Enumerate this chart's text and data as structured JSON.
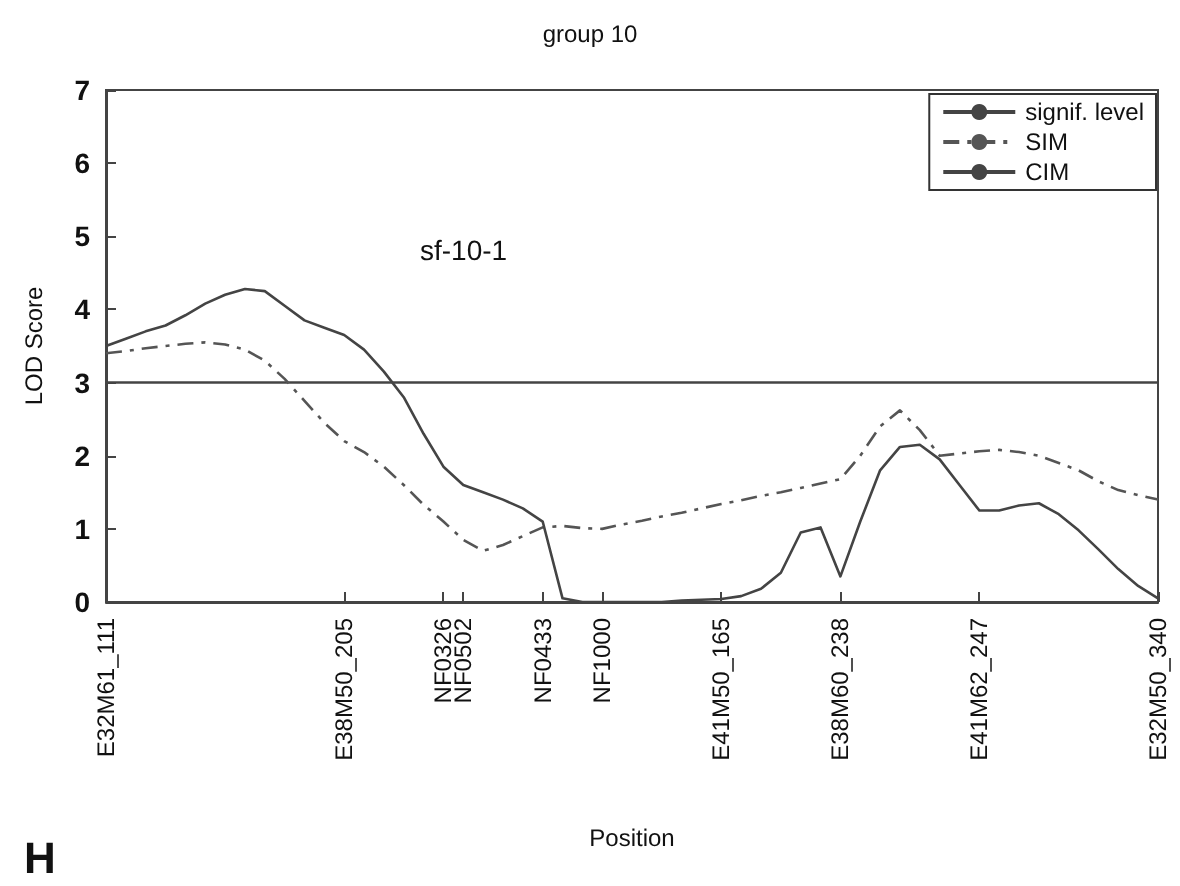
{
  "chart_data": {
    "type": "line",
    "title": "group 10",
    "xlabel": "Position",
    "ylabel": "LOD Score",
    "annotations": [
      "sf-10-1",
      "H"
    ],
    "categories": [
      "E32M61_111",
      null,
      null,
      null,
      null,
      null,
      null,
      null,
      null,
      null,
      null,
      null,
      "E38M50_205",
      null,
      null,
      null,
      null,
      "NF0326",
      "NF0502",
      null,
      null,
      null,
      "NF0433",
      null,
      null,
      "NF1000",
      null,
      null,
      null,
      null,
      null,
      "E41M50_165",
      null,
      null,
      null,
      null,
      null,
      "E38M60_238",
      null,
      null,
      null,
      null,
      null,
      null,
      "E41M62_247",
      null,
      null,
      null,
      null,
      null,
      null,
      null,
      null,
      "E32M50_340"
    ],
    "ylim": [
      0,
      7
    ],
    "yticks": [
      0,
      1,
      2,
      3,
      4,
      5,
      6,
      7
    ],
    "grid": false,
    "legend": "top right",
    "marker": "none",
    "series": [
      {
        "name": "signif. level",
        "color": "#444444",
        "line_style": "solid",
        "values": [
          3,
          3,
          3,
          3,
          3,
          3,
          3,
          3,
          3,
          3,
          3,
          3,
          3,
          3,
          3,
          3,
          3,
          3,
          3,
          3,
          3,
          3,
          3,
          3,
          3,
          3,
          3,
          3,
          3,
          3,
          3,
          3,
          3,
          3,
          3,
          3,
          3,
          3,
          3,
          3,
          3,
          3,
          3,
          3,
          3,
          3,
          3,
          3,
          3,
          3,
          3,
          3,
          3,
          3
        ]
      },
      {
        "name": "SIM",
        "color": "#555555",
        "line_style": "dashed",
        "values": [
          3.4,
          3.43,
          3.47,
          3.5,
          3.53,
          3.55,
          3.52,
          3.45,
          3.3,
          3.05,
          2.75,
          2.45,
          2.2,
          2.05,
          1.85,
          1.6,
          1.33,
          1.1,
          0.85,
          0.7,
          0.78,
          0.9,
          1.02,
          1.04,
          1.01,
          1.0,
          1.06,
          1.11,
          1.17,
          1.22,
          1.28,
          1.34,
          1.39,
          1.45,
          1.5,
          1.56,
          1.62,
          1.68,
          2.0,
          2.4,
          2.62,
          2.35,
          2.0,
          2.03,
          2.06,
          2.08,
          2.05,
          2.0,
          1.9,
          1.8,
          1.65,
          1.53,
          1.46,
          1.4
        ]
      },
      {
        "name": "CIM",
        "color": "#444444",
        "line_style": "solid",
        "values": [
          3.5,
          3.6,
          3.7,
          3.78,
          3.92,
          4.08,
          4.2,
          4.28,
          4.25,
          4.05,
          3.85,
          3.75,
          3.65,
          3.45,
          3.15,
          2.8,
          2.3,
          1.85,
          1.6,
          1.5,
          1.4,
          1.28,
          1.1,
          0.05,
          0,
          0,
          0,
          0,
          0,
          0.02,
          0.03,
          0.04,
          0.08,
          0.18,
          0.4,
          0.95,
          1.02,
          0.35,
          1.1,
          1.8,
          2.12,
          2.15,
          1.95,
          1.6,
          1.25,
          1.25,
          1.32,
          1.35,
          1.2,
          0.98,
          0.72,
          0.45,
          0.22,
          0.05
        ]
      }
    ]
  }
}
